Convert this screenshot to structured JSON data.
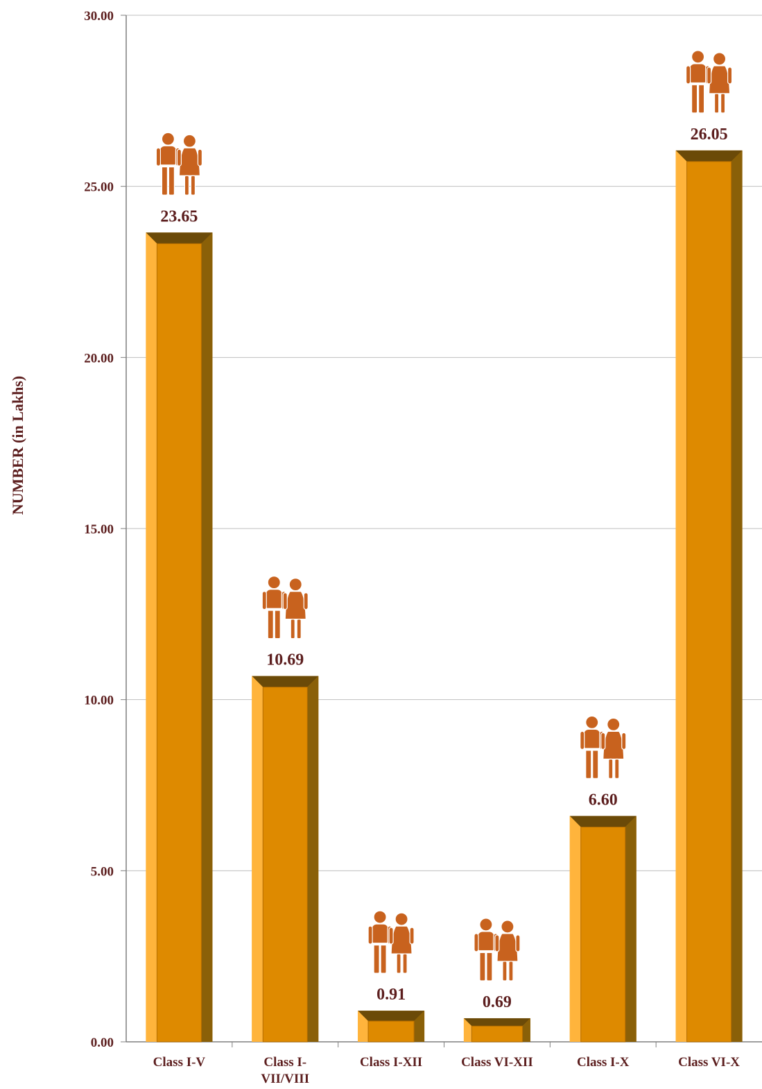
{
  "chart_data": {
    "type": "bar",
    "title": "",
    "xlabel": "",
    "ylabel": "NUMBER (in Lakhs)",
    "ylim": [
      0,
      30
    ],
    "yticks": [
      "0.00",
      "5.00",
      "10.00",
      "15.00",
      "20.00",
      "25.00",
      "30.00"
    ],
    "categories": [
      "Class I-V",
      "Class I-VII/VIII",
      "Class I-XII",
      "Class VI-XII",
      "Class I-X",
      "Class VI-X"
    ],
    "category_lines": [
      [
        "Class I-V"
      ],
      [
        "Class I-",
        "VII/VIII"
      ],
      [
        "Class I-XII"
      ],
      [
        "Class VI-XII"
      ],
      [
        "Class I-X"
      ],
      [
        "Class VI-X"
      ]
    ],
    "values": [
      23.65,
      10.69,
      0.91,
      0.69,
      6.6,
      26.05
    ],
    "value_labels": [
      "23.65",
      "10.69",
      "0.91",
      "0.69",
      "6.60",
      "26.05"
    ],
    "grid": true,
    "legend": "none",
    "colors": {
      "bar": "#e08c00",
      "bar_light": "#ffb43c",
      "bar_dark": "#6b4a08",
      "text": "#5c1e1e",
      "icon": "#c8621e",
      "grid": "#bfbfbf",
      "axis": "#7f7f7f"
    },
    "icon": "boy-girl-students-icon"
  }
}
